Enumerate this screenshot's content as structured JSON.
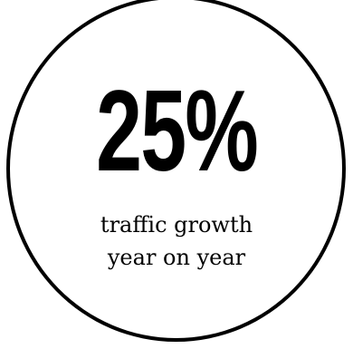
{
  "stat": {
    "value": "25%",
    "caption_line_1": "traffic growth",
    "caption_line_2": "year on year"
  },
  "colors": {
    "background": "#ffffff",
    "circle_stroke": "#000000",
    "text": "#000000"
  }
}
